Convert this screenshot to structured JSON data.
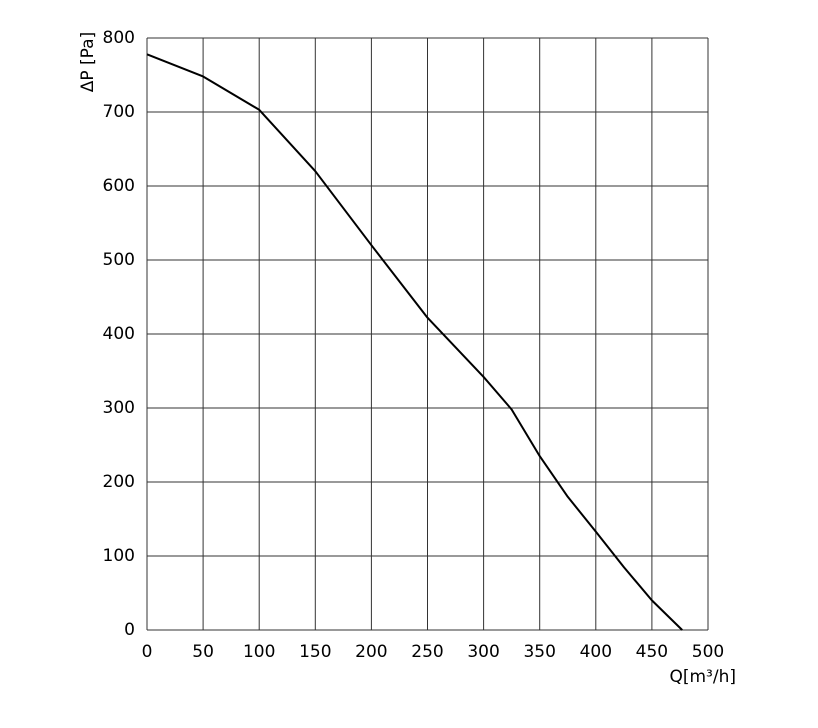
{
  "chart_data": {
    "type": "line",
    "y_label": "ΔP [Pa]",
    "x_label": "Q[m³/h]",
    "series": [
      {
        "color": "#000000",
        "x": [
          0,
          50,
          100,
          150,
          200,
          250,
          300,
          325,
          350,
          375,
          400,
          425,
          450,
          477
        ],
        "values": [
          778,
          748,
          703,
          620,
          520,
          422,
          342,
          298,
          235,
          180,
          133,
          85,
          40,
          0
        ]
      }
    ],
    "xlim": [
      0,
      500
    ],
    "xticks": [
      0,
      50,
      100,
      150,
      200,
      250,
      300,
      350,
      400,
      450,
      500
    ],
    "ylim": [
      0,
      800
    ],
    "yticks": [
      0,
      100,
      200,
      300,
      400,
      500,
      600,
      700,
      800
    ],
    "grid": true
  }
}
